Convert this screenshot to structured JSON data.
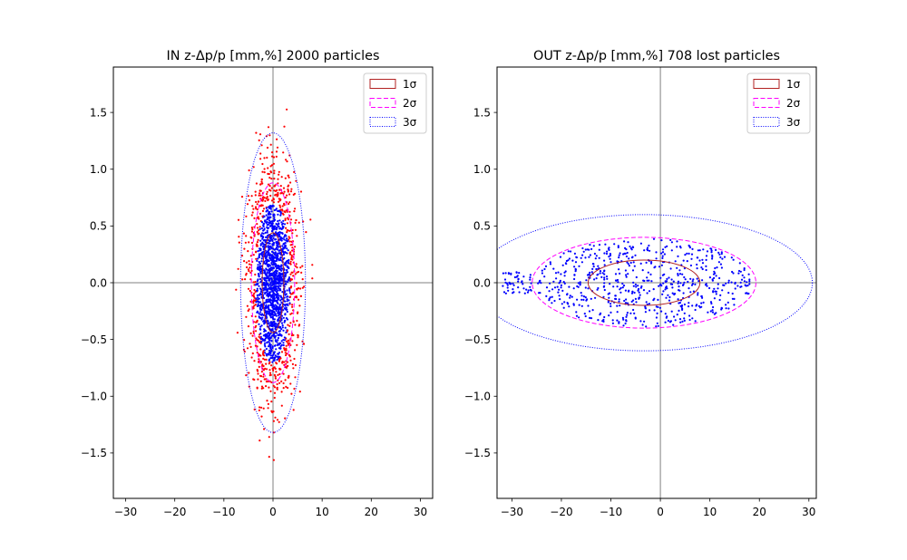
{
  "chart_data": [
    {
      "type": "scatter",
      "title": "IN z-Δp/p [mm,%] 2000 particles",
      "xlabel": "",
      "ylabel": "",
      "xlim": [
        -32.5,
        32.5
      ],
      "ylim": [
        -1.9,
        1.9
      ],
      "xticks": [
        -30,
        -20,
        -10,
        0,
        10,
        20,
        30
      ],
      "yticks": [
        -1.5,
        -1.0,
        -0.5,
        0.0,
        0.5,
        1.0,
        1.5
      ],
      "xtick_labels": [
        "−30",
        "−20",
        "−10",
        "0",
        "10",
        "20",
        "30"
      ],
      "ytick_labels": [
        "−1.5",
        "−1.0",
        "−0.5",
        "0.0",
        "0.5",
        "1.0",
        "1.5"
      ],
      "grid": false,
      "axis_lines_at_zero": true,
      "legend_position": "top-right",
      "legend": [
        {
          "label": "1σ",
          "style": "solid",
          "color": "#b22222"
        },
        {
          "label": "2σ",
          "style": "dashed",
          "color": "#ff00ff"
        },
        {
          "label": "3σ",
          "style": "dotted",
          "color": "#0000ff"
        }
      ],
      "ellipses": [
        {
          "sigma": 1,
          "center": [
            0,
            0
          ],
          "semi_x": 2.2,
          "semi_y": 0.44,
          "color": "#b22222",
          "style": "solid"
        },
        {
          "sigma": 2,
          "center": [
            0,
            0
          ],
          "semi_x": 4.4,
          "semi_y": 0.88,
          "color": "#ff00ff",
          "style": "dashed"
        },
        {
          "sigma": 3,
          "center": [
            0,
            0
          ],
          "semi_x": 6.6,
          "semi_y": 1.32,
          "color": "#0000ff",
          "style": "dotted"
        }
      ],
      "particles": {
        "count": 2000,
        "outer_color": "#ff0000",
        "inner_color": "#0000ff",
        "x_range": [
          -8.2,
          8.0
        ],
        "y_range": [
          -1.85,
          1.8
        ]
      }
    },
    {
      "type": "scatter",
      "title": "OUT z-Δp/p [mm,%] 708 lost particles",
      "xlabel": "",
      "ylabel": "",
      "xlim": [
        -33,
        31.5
      ],
      "ylim": [
        -1.9,
        1.9
      ],
      "xticks": [
        -30,
        -20,
        -10,
        0,
        10,
        20,
        30
      ],
      "yticks": [
        -1.5,
        -1.0,
        -0.5,
        0.0,
        0.5,
        1.0,
        1.5
      ],
      "xtick_labels": [
        "−30",
        "−20",
        "−10",
        "0",
        "10",
        "20",
        "30"
      ],
      "ytick_labels": [
        "−1.5",
        "−1.0",
        "−0.5",
        "0.0",
        "0.5",
        "1.0",
        "1.5"
      ],
      "grid": false,
      "axis_lines_at_zero": true,
      "legend_position": "top-right",
      "legend": [
        {
          "label": "1σ",
          "style": "solid",
          "color": "#b22222"
        },
        {
          "label": "2σ",
          "style": "dashed",
          "color": "#ff00ff"
        },
        {
          "label": "3σ",
          "style": "dotted",
          "color": "#0000ff"
        }
      ],
      "ellipses": [
        {
          "sigma": 1,
          "center": [
            -3.3,
            0
          ],
          "semi_x": 11.3,
          "semi_y": 0.2,
          "color": "#b22222",
          "style": "solid"
        },
        {
          "sigma": 2,
          "center": [
            -3.3,
            0
          ],
          "semi_x": 22.6,
          "semi_y": 0.4,
          "color": "#ff00ff",
          "style": "dashed"
        },
        {
          "sigma": 3,
          "center": [
            -3.3,
            0
          ],
          "semi_x": 34.0,
          "semi_y": 0.6,
          "color": "#0000ff",
          "style": "dotted"
        }
      ],
      "particles": {
        "count": 708,
        "color": "#0000ff",
        "x_range": [
          -32,
          18
        ],
        "y_range": [
          -0.45,
          0.42
        ]
      }
    }
  ]
}
